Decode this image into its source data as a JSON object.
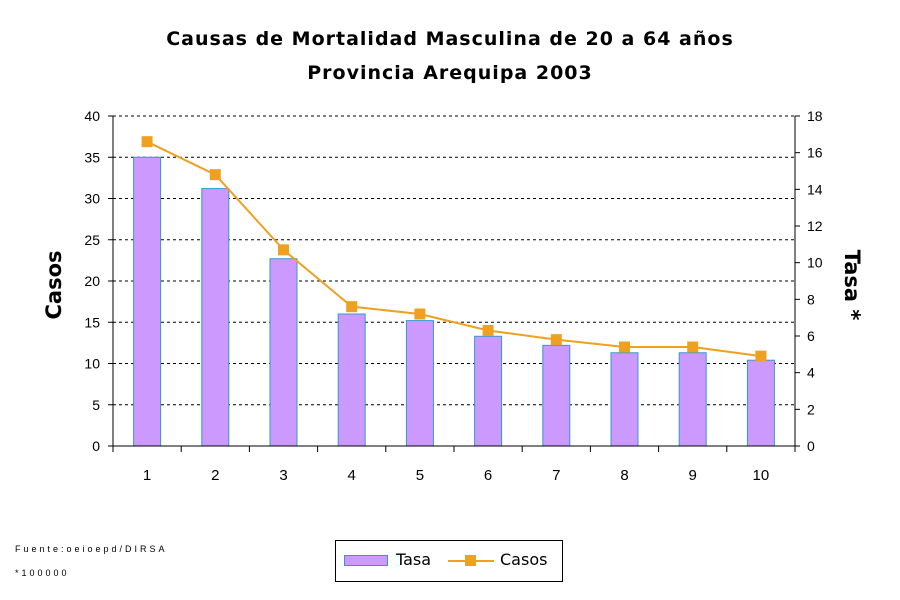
{
  "chart_data": {
    "type": "bar",
    "title": "Causas de Mortalidad Masculina de 20 a 64 años",
    "subtitle": "Provincia Arequipa 2003",
    "ylabel": "Casos",
    "y2label": "Tasa *",
    "categories": [
      "1",
      "2",
      "3",
      "4",
      "5",
      "6",
      "7",
      "8",
      "9",
      "10"
    ],
    "ylim": [
      0,
      40
    ],
    "y2lim": [
      0,
      18
    ],
    "yticks": [
      "0",
      "5",
      "10",
      "15",
      "20",
      "25",
      "30",
      "35",
      "40"
    ],
    "y2ticks": [
      "0",
      "2",
      "4",
      "6",
      "8",
      "10",
      "12",
      "14",
      "16",
      "18"
    ],
    "grid": true,
    "legend_position": "bottom",
    "series": [
      {
        "name": "Tasa",
        "type": "bar",
        "axis": "left",
        "color": "#cc99ff",
        "border_color": "#3399cc",
        "values": [
          35,
          31.2,
          22.7,
          16,
          15.2,
          13.3,
          12.2,
          11.3,
          11.3,
          10.4
        ]
      },
      {
        "name": "Casos",
        "type": "line",
        "axis": "right",
        "color": "#f0a020",
        "values": [
          16.6,
          14.8,
          10.7,
          7.6,
          7.2,
          6.3,
          5.8,
          5.4,
          5.4,
          4.9
        ]
      }
    ]
  },
  "notes": {
    "source": "Fuente:oeioepd/DIRSA",
    "rate_note": "*100000"
  }
}
